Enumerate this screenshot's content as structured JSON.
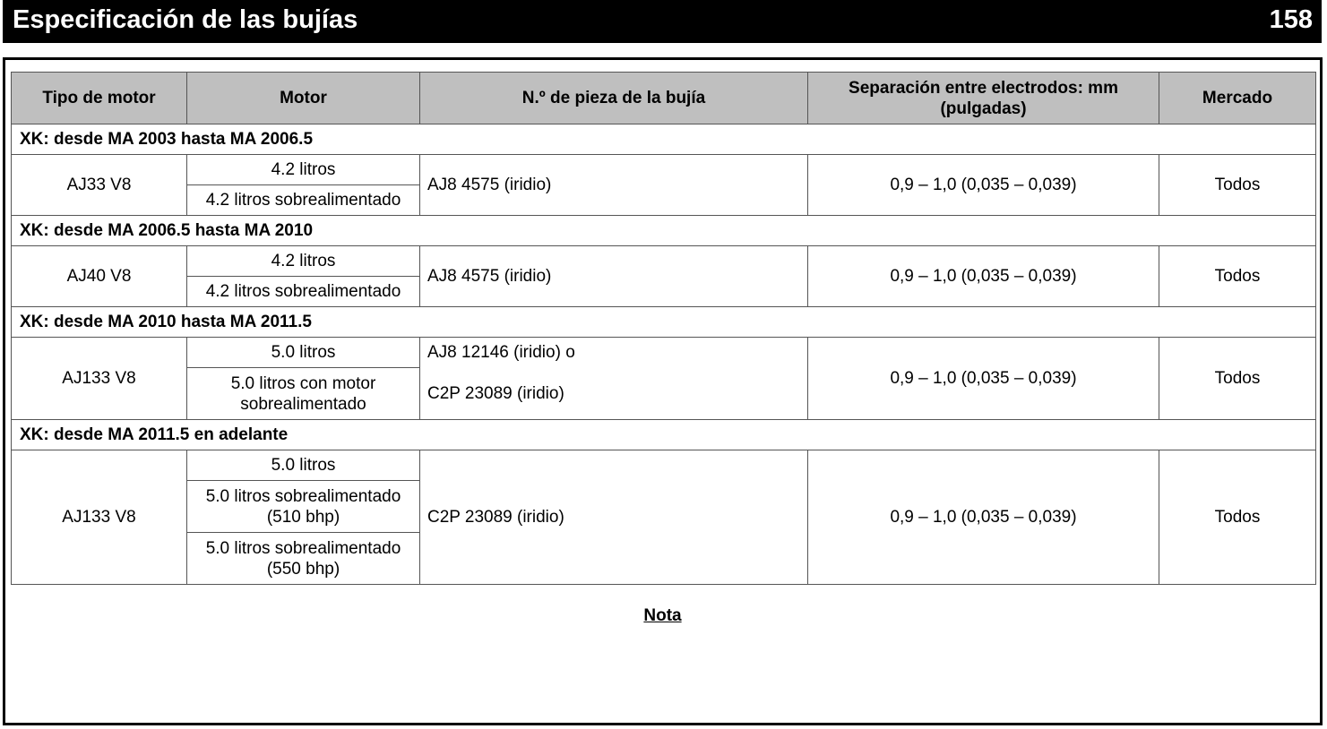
{
  "header": {
    "title": "Especificación de las bujías",
    "page_number": "158"
  },
  "table": {
    "columns": [
      "Tipo de motor",
      "Motor",
      "N.º de pieza de la bujía",
      "Separación entre electrodos: mm (pulgadas)",
      "Mercado"
    ],
    "sections": [
      {
        "title": "XK: desde MA 2003 hasta MA 2006.5",
        "engine_type": "AJ33 V8",
        "motors": [
          "4.2 litros",
          "4.2 litros sobrealimentado"
        ],
        "parts": [
          "AJ8 4575 (iridio)"
        ],
        "gap": "0,9 – 1,0 (0,035 – 0,039)",
        "market": "Todos"
      },
      {
        "title": "XK: desde MA 2006.5 hasta MA 2010",
        "engine_type": "AJ40 V8",
        "motors": [
          "4.2 litros",
          "4.2 litros sobrealimentado"
        ],
        "parts": [
          "AJ8 4575 (iridio)"
        ],
        "gap": "0,9 – 1,0 (0,035 – 0,039)",
        "market": "Todos"
      },
      {
        "title": "XK: desde MA 2010 hasta MA 2011.5",
        "engine_type": "AJ133 V8",
        "motors": [
          "5.0 litros",
          "5.0 litros con motor sobrealimentado"
        ],
        "parts": [
          "AJ8 12146 (iridio) o",
          "C2P 23089 (iridio)"
        ],
        "gap": "0,9 – 1,0 (0,035 – 0,039)",
        "market": "Todos"
      },
      {
        "title": "XK: desde MA 2011.5 en adelante",
        "engine_type": "AJ133 V8",
        "motors": [
          "5.0 litros",
          "5.0 litros sobrealimentado (510 bhp)",
          "5.0 litros sobrealimentado (550 bhp)"
        ],
        "parts": [
          "C2P 23089 (iridio)"
        ],
        "gap": "0,9 – 1,0 (0,035 – 0,039)",
        "market": "Todos"
      }
    ]
  },
  "note": {
    "label": "Nota"
  }
}
